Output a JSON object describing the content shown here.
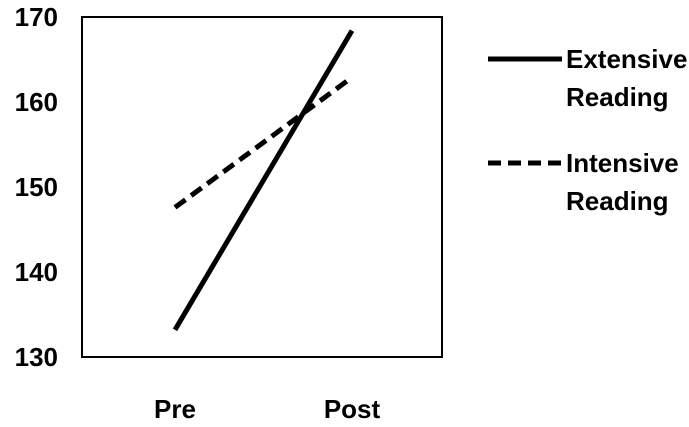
{
  "chart_data": {
    "type": "line",
    "categories": [
      "Pre",
      "Post"
    ],
    "ylim": [
      130,
      170
    ],
    "yticks": [
      "130",
      "140",
      "150",
      "160",
      "170"
    ],
    "grid": false,
    "legend_position": "right",
    "series": [
      {
        "name_lines": [
          "Extensive",
          "Reading"
        ],
        "values": [
          133.2,
          168.4
        ],
        "dash": "solid",
        "color": "#000000"
      },
      {
        "name_lines": [
          "Intensive",
          "Reading"
        ],
        "values": [
          147.6,
          162.9
        ],
        "dash": "dashed",
        "color": "#000000"
      }
    ]
  }
}
